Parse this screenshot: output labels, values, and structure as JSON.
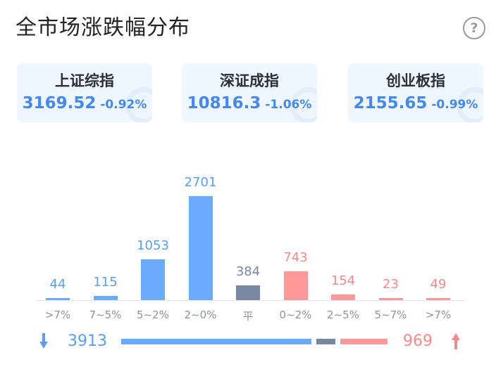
{
  "header": {
    "title": "全市场涨跌幅分布",
    "help_icon": "?"
  },
  "indices": [
    {
      "name": "上证综指",
      "value": "3169.52",
      "change": "-0.92%"
    },
    {
      "name": "深证成指",
      "value": "10816.3",
      "change": "-1.06%"
    },
    {
      "name": "创业板指",
      "value": "2155.65",
      "change": "-0.99%"
    }
  ],
  "colors": {
    "down": "#6aaaff",
    "flat": "#7888a0",
    "up": "#ff9999",
    "down_text": "#5a9ef0",
    "up_text": "#f28a8a"
  },
  "chart_data": {
    "type": "bar",
    "categories": [
      ">7%",
      "7~5%",
      "5~2%",
      "2~0%",
      "平",
      "0~2%",
      "2~5%",
      "5~7%",
      ">7%"
    ],
    "values": [
      44,
      115,
      1053,
      2701,
      384,
      743,
      154,
      23,
      49
    ],
    "groups": [
      "down",
      "down",
      "down",
      "down",
      "flat",
      "up",
      "up",
      "up",
      "up"
    ],
    "ylim": [
      0,
      2701
    ]
  },
  "summary": {
    "down_count": "3913",
    "up_count": "969",
    "flat_count": 384
  }
}
